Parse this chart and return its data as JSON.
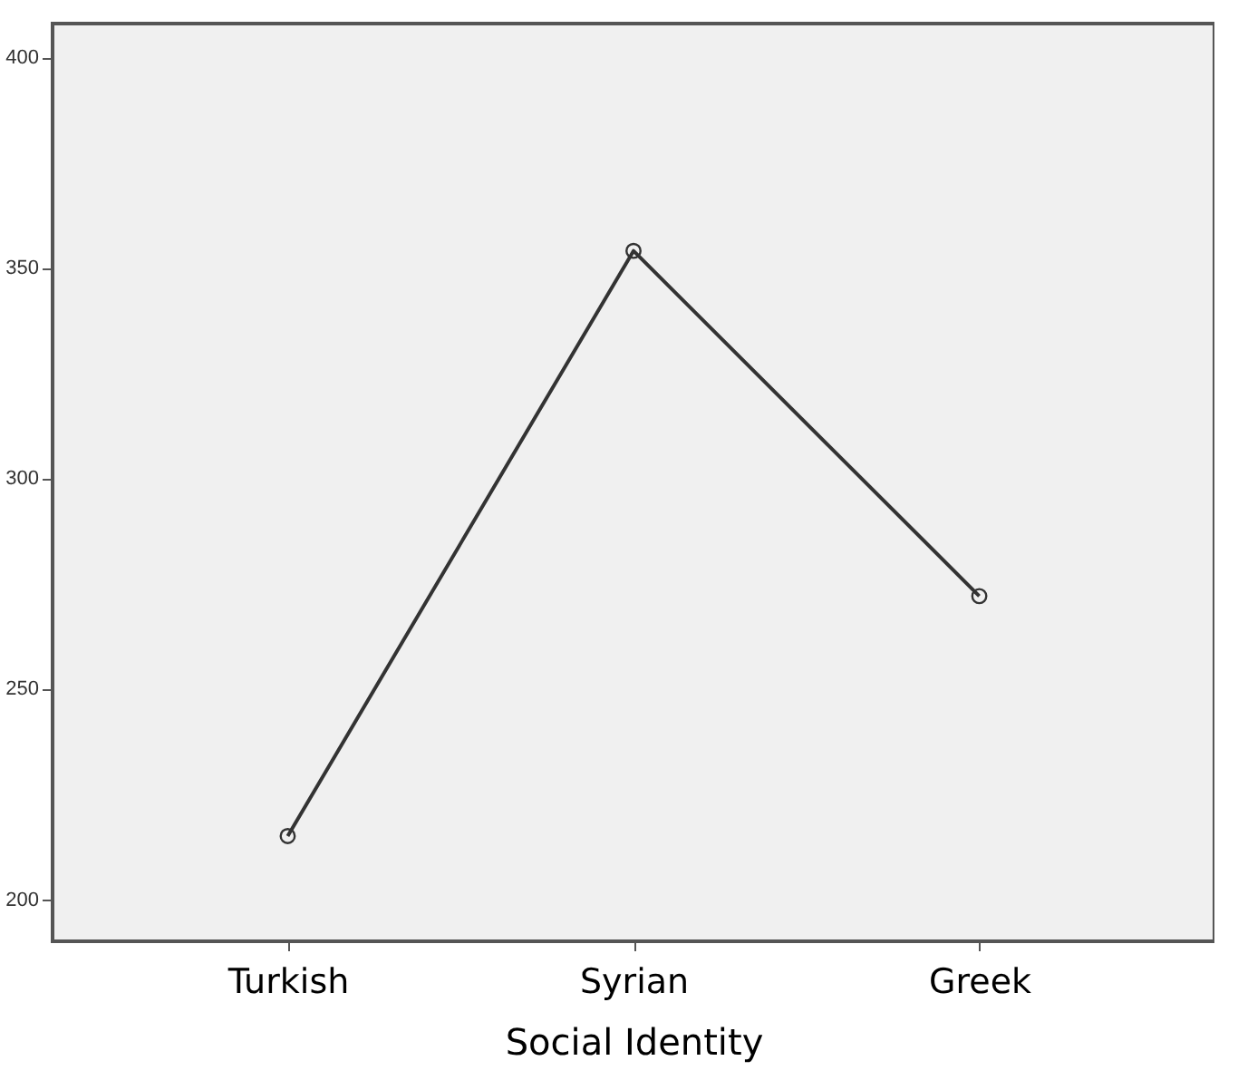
{
  "chart_data": {
    "type": "line",
    "xlabel": "Social Identity",
    "categories": [
      "Turkish",
      "Syrian",
      "Greek"
    ],
    "series": [
      {
        "color": "#333333",
        "values": [
          215,
          354,
          272
        ]
      }
    ],
    "ylim": [
      190,
      408
    ],
    "yticks": [
      200,
      250,
      300,
      350,
      400
    ],
    "grid": false,
    "legend": false,
    "marker": "circle",
    "line_style": "solid"
  }
}
